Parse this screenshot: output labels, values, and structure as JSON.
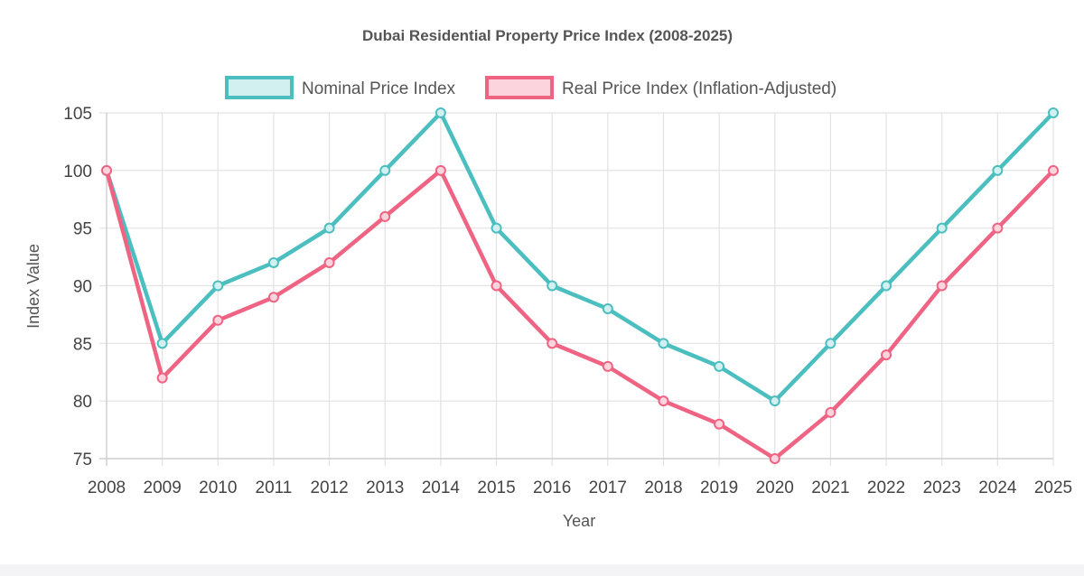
{
  "chart_data": {
    "type": "line",
    "title": "Dubai Residential Property Price Index (2008-2025)",
    "xlabel": "Year",
    "ylabel": "Index Value",
    "ylim": [
      75,
      105
    ],
    "yticks": [
      75,
      80,
      85,
      90,
      95,
      100,
      105
    ],
    "grid": true,
    "legend_position": "top-center",
    "categories": [
      "2008",
      "2009",
      "2010",
      "2011",
      "2012",
      "2013",
      "2014",
      "2015",
      "2016",
      "2017",
      "2018",
      "2019",
      "2020",
      "2021",
      "2022",
      "2023",
      "2024",
      "2025"
    ],
    "series": [
      {
        "name": "Nominal Price Index",
        "color": "#4bbfc0",
        "fill": "#d3f0f0",
        "values": [
          100,
          85,
          90,
          92,
          95,
          100,
          105,
          95,
          90,
          88,
          85,
          83,
          80,
          85,
          90,
          95,
          100,
          105
        ]
      },
      {
        "name": "Real Price Index (Inflation-Adjusted)",
        "color": "#ef6383",
        "fill": "#fbd4dd",
        "values": [
          100,
          82,
          87,
          89,
          92,
          96,
          100,
          90,
          85,
          83,
          80,
          78,
          75,
          79,
          84,
          90,
          95,
          100
        ]
      }
    ]
  }
}
